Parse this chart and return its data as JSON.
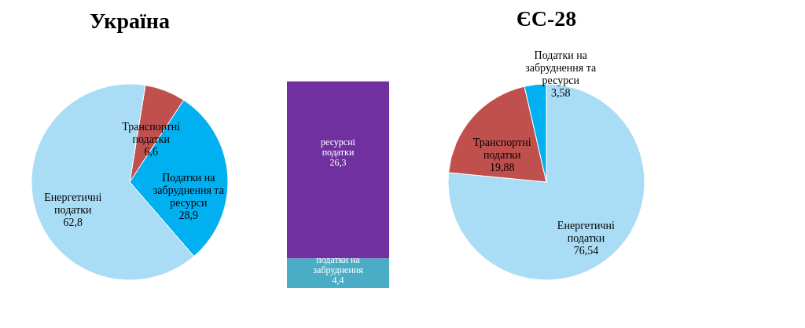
{
  "chart_data": [
    {
      "type": "pie",
      "title": "Україна",
      "categories": [
        "Транспортні податки",
        "Податки на забруднення та ресурси",
        "Енергетичні податки"
      ],
      "values": [
        6.6,
        28.9,
        62.8
      ],
      "value_labels": [
        "6,6",
        "28,9",
        "62,8"
      ],
      "colors": [
        "#c0504d",
        "#00b0f0",
        "#a9dcf5"
      ],
      "legend": false
    },
    {
      "type": "bar",
      "stacked": true,
      "categories": [
        null
      ],
      "series": [
        {
          "name": "податки на забруднення",
          "color": "#4bacc6",
          "values": [
            4.4
          ],
          "value_labels": [
            "4,4"
          ]
        },
        {
          "name": "ресурсні податки",
          "color": "#7030a0",
          "values": [
            26.3
          ],
          "value_labels": [
            "26,3"
          ]
        }
      ],
      "legend": false
    },
    {
      "type": "pie",
      "title": "ЄС-28",
      "categories": [
        "Енергетичні податки",
        "Транспортні податки",
        "Податки на забруднення та ресурси"
      ],
      "values": [
        76.54,
        19.88,
        3.58
      ],
      "value_labels": [
        "76,54",
        "19,88",
        "3,58"
      ],
      "colors": [
        "#a9dcf5",
        "#c0504d",
        "#00b0f0"
      ],
      "legend": false
    }
  ]
}
